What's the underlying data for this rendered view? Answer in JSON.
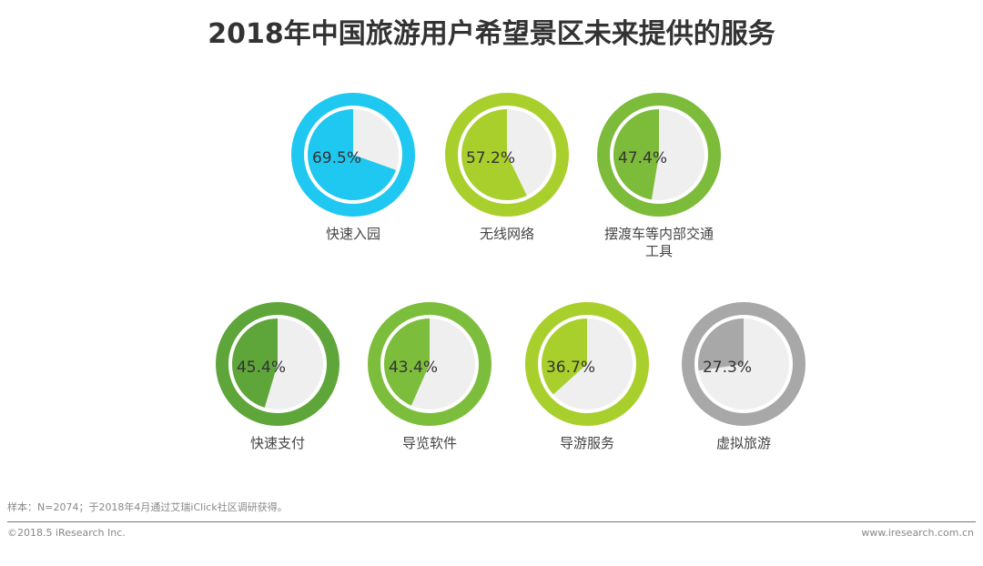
{
  "chart_data": {
    "type": "pie",
    "title": "2018年中国旅游用户希望景区未来提供的服务",
    "unit": "%",
    "items": [
      {
        "label": "快速入园",
        "value": 69.5,
        "display": "69.5%",
        "color": "#1ec8f0"
      },
      {
        "label": "无线网络",
        "value": 57.2,
        "display": "57.2%",
        "color": "#a9cf2c"
      },
      {
        "label": "摆渡车等内部交通工具",
        "label_lines": [
          "摆渡车等内部交通",
          "工具"
        ],
        "value": 47.4,
        "display": "47.4%",
        "color": "#7dbb3a"
      },
      {
        "label": "快速支付",
        "value": 45.4,
        "display": "45.4%",
        "color": "#5ea53a"
      },
      {
        "label": "导览软件",
        "value": 43.4,
        "display": "43.4%",
        "color": "#7cbd3b"
      },
      {
        "label": "导游服务",
        "value": 36.7,
        "display": "36.7%",
        "color": "#a9cf2c"
      },
      {
        "label": "虚拟旅游",
        "value": 27.3,
        "display": "27.3%",
        "color": "#a8a8a8"
      }
    ]
  },
  "footer": {
    "note": "样本：N=2074；于2018年4月通过艾瑞iClick社区调研获得。",
    "copyright": "©2018.5 iResearch Inc.",
    "site": "www.iresearch.com.cn"
  }
}
